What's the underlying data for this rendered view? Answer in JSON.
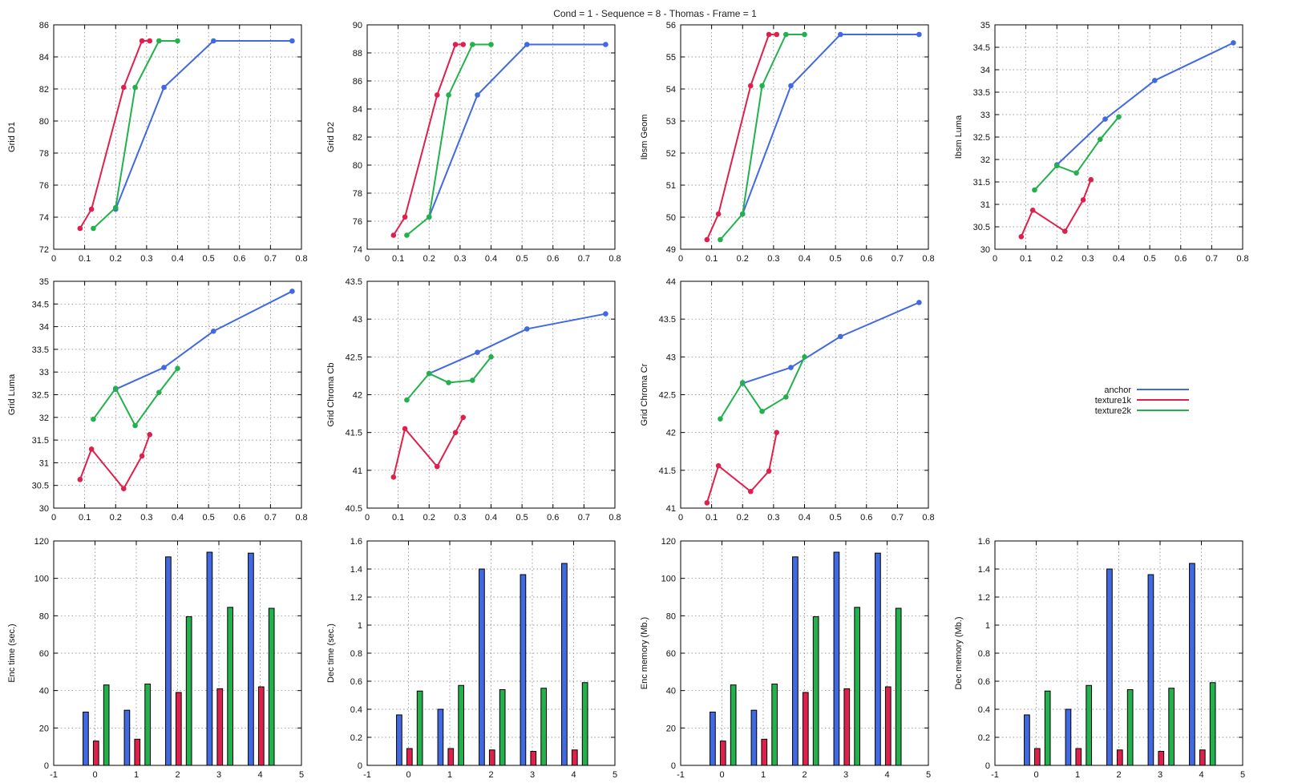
{
  "title": "Cond = 1 - Sequence = 8 - Thomas - Frame = 1",
  "legend": [
    {
      "name": "anchor",
      "color": "#4169e1"
    },
    {
      "name": "texture1k",
      "color": "#e0204c"
    },
    {
      "name": "texture2k",
      "color": "#22b14c"
    }
  ],
  "chart_data": [
    {
      "type": "line",
      "ylabel": "Grid D1",
      "xlim": [
        0,
        0.8
      ],
      "ylim": [
        72,
        86
      ],
      "xticks": [
        0,
        0.1,
        0.2,
        0.3,
        0.4,
        0.5,
        0.6,
        0.7,
        0.8
      ],
      "yticks": [
        72,
        74,
        76,
        78,
        80,
        82,
        84,
        86
      ],
      "series": [
        {
          "name": "anchor",
          "color": "#4169e1",
          "x": [
            0.2,
            0.356,
            0.516,
            0.77
          ],
          "y": [
            74.5,
            82.1,
            85,
            85
          ]
        },
        {
          "name": "texture1k",
          "color": "#e0204c",
          "x": [
            0.085,
            0.122,
            0.226,
            0.285,
            0.31
          ],
          "y": [
            73.3,
            74.5,
            82.1,
            85,
            85
          ]
        },
        {
          "name": "texture2k",
          "color": "#22b14c",
          "x": [
            0.128,
            0.2,
            0.263,
            0.34,
            0.4
          ],
          "y": [
            73.3,
            74.6,
            82.1,
            85,
            85
          ]
        }
      ]
    },
    {
      "type": "line",
      "ylabel": "Grid D2",
      "xlim": [
        0,
        0.8
      ],
      "ylim": [
        74,
        90
      ],
      "xticks": [
        0,
        0.1,
        0.2,
        0.3,
        0.4,
        0.5,
        0.6,
        0.7,
        0.8
      ],
      "yticks": [
        74,
        76,
        78,
        80,
        82,
        84,
        86,
        88,
        90
      ],
      "series": [
        {
          "name": "anchor",
          "color": "#4169e1",
          "x": [
            0.2,
            0.356,
            0.516,
            0.77
          ],
          "y": [
            76.3,
            85,
            88.6,
            88.6
          ]
        },
        {
          "name": "texture1k",
          "color": "#e0204c",
          "x": [
            0.085,
            0.122,
            0.226,
            0.285,
            0.31
          ],
          "y": [
            75,
            76.3,
            85,
            88.6,
            88.6
          ]
        },
        {
          "name": "texture2k",
          "color": "#22b14c",
          "x": [
            0.128,
            0.2,
            0.263,
            0.34,
            0.4
          ],
          "y": [
            75,
            76.3,
            85,
            88.6,
            88.6
          ]
        }
      ]
    },
    {
      "type": "line",
      "ylabel": "Ibsm Geom",
      "xlim": [
        0,
        0.8
      ],
      "ylim": [
        49,
        56
      ],
      "xticks": [
        0,
        0.1,
        0.2,
        0.3,
        0.4,
        0.5,
        0.6,
        0.7,
        0.8
      ],
      "yticks": [
        49,
        50,
        51,
        52,
        53,
        54,
        55,
        56
      ],
      "series": [
        {
          "name": "anchor",
          "color": "#4169e1",
          "x": [
            0.2,
            0.356,
            0.516,
            0.77
          ],
          "y": [
            50.1,
            54.1,
            55.7,
            55.7
          ]
        },
        {
          "name": "texture1k",
          "color": "#e0204c",
          "x": [
            0.085,
            0.122,
            0.226,
            0.285,
            0.31
          ],
          "y": [
            49.3,
            50.1,
            54.1,
            55.7,
            55.7
          ]
        },
        {
          "name": "texture2k",
          "color": "#22b14c",
          "x": [
            0.128,
            0.2,
            0.263,
            0.34,
            0.4
          ],
          "y": [
            49.3,
            50.1,
            54.1,
            55.7,
            55.7
          ]
        }
      ]
    },
    {
      "type": "line",
      "ylabel": "Ibsm Luma",
      "xlim": [
        0,
        0.8
      ],
      "ylim": [
        30,
        35
      ],
      "xticks": [
        0,
        0.1,
        0.2,
        0.3,
        0.4,
        0.5,
        0.6,
        0.7,
        0.8
      ],
      "yticks": [
        30,
        30.5,
        31,
        31.5,
        32,
        32.5,
        33,
        33.5,
        34,
        34.5,
        35
      ],
      "series": [
        {
          "name": "anchor",
          "color": "#4169e1",
          "x": [
            0.2,
            0.356,
            0.516,
            0.77
          ],
          "y": [
            31.88,
            32.9,
            33.76,
            34.6
          ]
        },
        {
          "name": "texture1k",
          "color": "#e0204c",
          "x": [
            0.085,
            0.122,
            0.226,
            0.285,
            0.31
          ],
          "y": [
            30.28,
            30.87,
            30.4,
            31.1,
            31.55
          ]
        },
        {
          "name": "texture2k",
          "color": "#22b14c",
          "x": [
            0.128,
            0.2,
            0.263,
            0.34,
            0.4
          ],
          "y": [
            31.32,
            31.86,
            31.7,
            32.45,
            32.95
          ]
        }
      ]
    },
    {
      "type": "line",
      "ylabel": "Grid Luma",
      "xlim": [
        0,
        0.8
      ],
      "ylim": [
        30,
        35
      ],
      "xticks": [
        0,
        0.1,
        0.2,
        0.3,
        0.4,
        0.5,
        0.6,
        0.7,
        0.8
      ],
      "yticks": [
        30,
        30.5,
        31,
        31.5,
        32,
        32.5,
        33,
        33.5,
        34,
        34.5,
        35
      ],
      "series": [
        {
          "name": "anchor",
          "color": "#4169e1",
          "x": [
            0.2,
            0.356,
            0.516,
            0.77
          ],
          "y": [
            32.62,
            33.1,
            33.9,
            34.78
          ]
        },
        {
          "name": "texture1k",
          "color": "#e0204c",
          "x": [
            0.085,
            0.122,
            0.226,
            0.285,
            0.31
          ],
          "y": [
            30.63,
            31.3,
            30.43,
            31.15,
            31.62
          ]
        },
        {
          "name": "texture2k",
          "color": "#22b14c",
          "x": [
            0.128,
            0.2,
            0.263,
            0.34,
            0.4
          ],
          "y": [
            31.96,
            32.64,
            31.82,
            32.55,
            33.08
          ]
        }
      ]
    },
    {
      "type": "line",
      "ylabel": "Grid Chroma Cb",
      "xlim": [
        0,
        0.8
      ],
      "ylim": [
        40.5,
        43.5
      ],
      "xticks": [
        0,
        0.1,
        0.2,
        0.3,
        0.4,
        0.5,
        0.6,
        0.7,
        0.8
      ],
      "yticks": [
        40.5,
        41,
        41.5,
        42,
        42.5,
        43,
        43.5
      ],
      "series": [
        {
          "name": "anchor",
          "color": "#4169e1",
          "x": [
            0.2,
            0.356,
            0.516,
            0.77
          ],
          "y": [
            42.28,
            42.56,
            42.87,
            43.07
          ]
        },
        {
          "name": "texture1k",
          "color": "#e0204c",
          "x": [
            0.085,
            0.122,
            0.226,
            0.285,
            0.31
          ],
          "y": [
            40.91,
            41.55,
            41.05,
            41.5,
            41.7
          ]
        },
        {
          "name": "texture2k",
          "color": "#22b14c",
          "x": [
            0.128,
            0.2,
            0.263,
            0.34,
            0.4
          ],
          "y": [
            41.93,
            42.28,
            42.16,
            42.19,
            42.5
          ]
        }
      ]
    },
    {
      "type": "line",
      "ylabel": "Grid Chroma Cr",
      "xlim": [
        0,
        0.8
      ],
      "ylim": [
        41,
        44
      ],
      "xticks": [
        0,
        0.1,
        0.2,
        0.3,
        0.4,
        0.5,
        0.6,
        0.7,
        0.8
      ],
      "yticks": [
        41,
        41.5,
        42,
        42.5,
        43,
        43.5,
        44
      ],
      "series": [
        {
          "name": "anchor",
          "color": "#4169e1",
          "x": [
            0.2,
            0.356,
            0.516,
            0.77
          ],
          "y": [
            42.65,
            42.86,
            43.27,
            43.72
          ]
        },
        {
          "name": "texture1k",
          "color": "#e0204c",
          "x": [
            0.085,
            0.122,
            0.226,
            0.285,
            0.31
          ],
          "y": [
            41.07,
            41.56,
            41.22,
            41.49,
            42
          ]
        },
        {
          "name": "texture2k",
          "color": "#22b14c",
          "x": [
            0.128,
            0.2,
            0.263,
            0.34,
            0.4
          ],
          "y": [
            42.18,
            42.66,
            42.28,
            42.47,
            43
          ]
        }
      ]
    },
    {
      "type": "bar",
      "ylabel": "Enc time (sec.)",
      "xlim": [
        -1,
        5
      ],
      "ylim": [
        0,
        120
      ],
      "xticks": [
        -1,
        0,
        1,
        2,
        3,
        4,
        5
      ],
      "yticks": [
        0,
        20,
        40,
        60,
        80,
        100,
        120
      ],
      "categories": [
        0,
        1,
        2,
        3,
        4
      ],
      "series": [
        {
          "name": "anchor",
          "color": "#4169e1",
          "values": [
            28.5,
            29.5,
            111.5,
            114,
            113.5
          ]
        },
        {
          "name": "texture1k",
          "color": "#e0204c",
          "values": [
            13,
            14,
            39,
            41,
            42
          ]
        },
        {
          "name": "texture2k",
          "color": "#22b14c",
          "values": [
            43,
            43.5,
            79.5,
            84.5,
            84
          ]
        }
      ]
    },
    {
      "type": "bar",
      "ylabel": "Dec time (sec.)",
      "xlim": [
        -1,
        5
      ],
      "ylim": [
        0,
        1.6
      ],
      "xticks": [
        -1,
        0,
        1,
        2,
        3,
        4,
        5
      ],
      "yticks": [
        0,
        0.2,
        0.4,
        0.6,
        0.8,
        1,
        1.2,
        1.4,
        1.6
      ],
      "categories": [
        0,
        1,
        2,
        3,
        4
      ],
      "series": [
        {
          "name": "anchor",
          "color": "#4169e1",
          "values": [
            0.36,
            0.4,
            1.4,
            1.36,
            1.44
          ]
        },
        {
          "name": "texture1k",
          "color": "#e0204c",
          "values": [
            0.12,
            0.12,
            0.11,
            0.1,
            0.11
          ]
        },
        {
          "name": "texture2k",
          "color": "#22b14c",
          "values": [
            0.53,
            0.57,
            0.54,
            0.55,
            0.59
          ]
        }
      ]
    },
    {
      "type": "bar",
      "ylabel": "Enc memory (Mb.)",
      "xlim": [
        -1,
        5
      ],
      "ylim": [
        0,
        120
      ],
      "xticks": [
        -1,
        0,
        1,
        2,
        3,
        4,
        5
      ],
      "yticks": [
        0,
        20,
        40,
        60,
        80,
        100,
        120
      ],
      "categories": [
        0,
        1,
        2,
        3,
        4
      ],
      "series": [
        {
          "name": "anchor",
          "color": "#4169e1",
          "values": [
            28.5,
            29.5,
            111.5,
            114,
            113.5
          ]
        },
        {
          "name": "texture1k",
          "color": "#e0204c",
          "values": [
            13,
            14,
            39,
            41,
            42
          ]
        },
        {
          "name": "texture2k",
          "color": "#22b14c",
          "values": [
            43,
            43.5,
            79.5,
            84.5,
            84
          ]
        }
      ]
    },
    {
      "type": "bar",
      "ylabel": "Dec memory (Mb.)",
      "xlim": [
        -1,
        5
      ],
      "ylim": [
        0,
        1.6
      ],
      "xticks": [
        -1,
        0,
        1,
        2,
        3,
        4,
        5
      ],
      "yticks": [
        0,
        0.2,
        0.4,
        0.6,
        0.8,
        1,
        1.2,
        1.4,
        1.6
      ],
      "categories": [
        0,
        1,
        2,
        3,
        4
      ],
      "series": [
        {
          "name": "anchor",
          "color": "#4169e1",
          "values": [
            0.36,
            0.4,
            1.4,
            1.36,
            1.44
          ]
        },
        {
          "name": "texture1k",
          "color": "#e0204c",
          "values": [
            0.12,
            0.12,
            0.11,
            0.1,
            0.11
          ]
        },
        {
          "name": "texture2k",
          "color": "#22b14c",
          "values": [
            0.53,
            0.57,
            0.54,
            0.55,
            0.59
          ]
        }
      ]
    }
  ]
}
